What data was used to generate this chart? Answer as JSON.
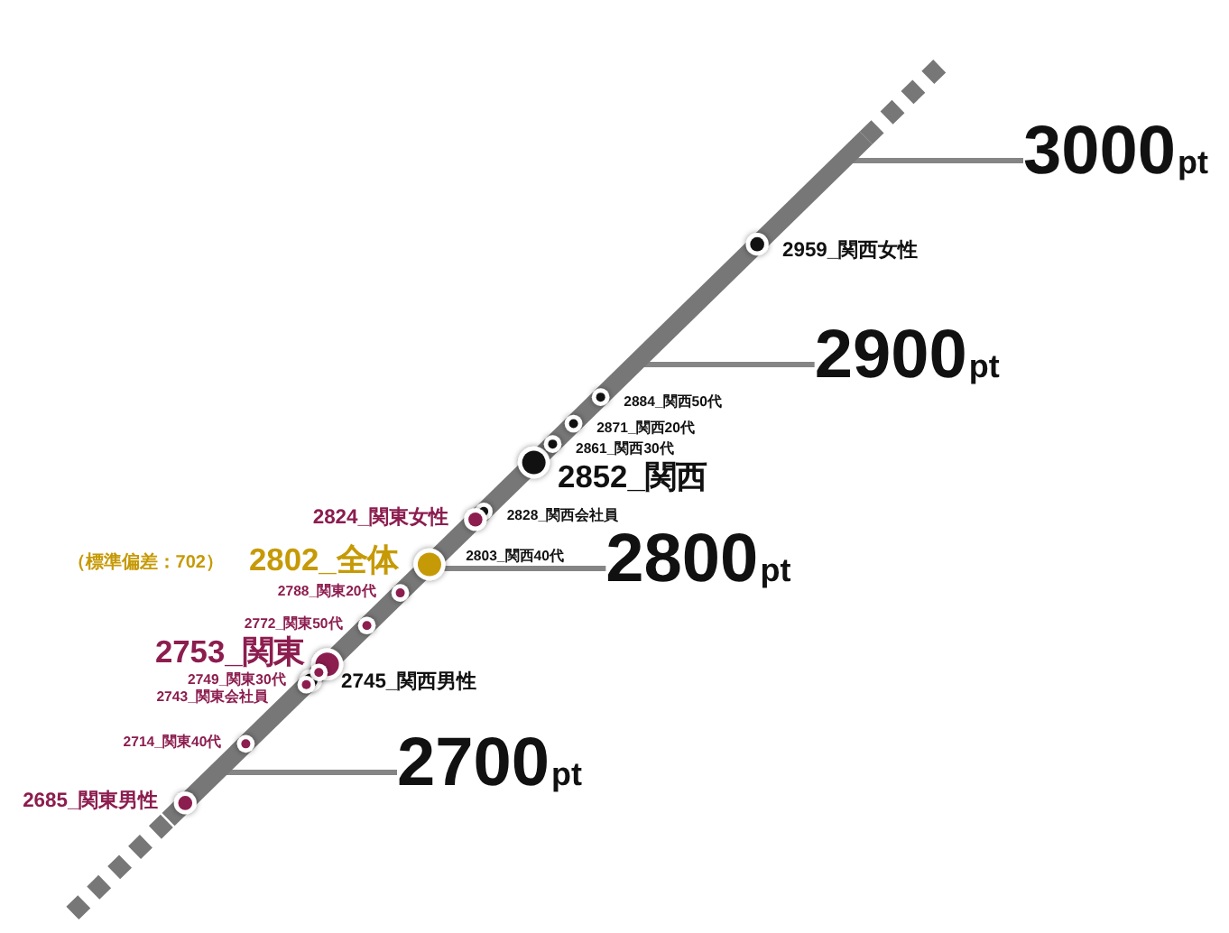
{
  "chart_data": {
    "type": "other",
    "data_labels": true,
    "categories": [
      "_関西女性",
      "_関西50代",
      "_関西20代",
      "_関西30代",
      "_関西",
      "_関西会社員",
      "_関東女性",
      "_関西40代",
      "_全体",
      "_関東20代",
      "_関東50代",
      "_関東",
      "_関東30代",
      "_関西男性",
      "_関東会社員",
      "_関東40代",
      "_関東男性"
    ],
    "series": [
      {
        "color": "#111111",
        "values": [
          null,
          null,
          null,
          null,
          2852,
          null,
          null,
          null,
          null,
          null,
          null,
          null,
          null,
          null,
          null,
          null,
          null
        ]
      },
      {
        "color": "#111111",
        "values": [
          2959,
          null,
          null,
          null,
          null,
          null,
          null,
          null,
          null,
          null,
          null,
          null,
          null,
          2745,
          null,
          null,
          null
        ]
      },
      {
        "color": "#111111",
        "values": [
          null,
          2884,
          2871,
          2861,
          null,
          2828,
          null,
          2803,
          null,
          null,
          null,
          null,
          null,
          null,
          null,
          null,
          null
        ]
      },
      {
        "color": "#c69a06",
        "values": [
          null,
          null,
          null,
          null,
          null,
          null,
          null,
          null,
          2802,
          null,
          null,
          null,
          null,
          null,
          null,
          null,
          null
        ]
      },
      {
        "color": "#8c1d4f",
        "values": [
          null,
          null,
          null,
          null,
          null,
          null,
          null,
          null,
          null,
          null,
          null,
          2753,
          null,
          null,
          null,
          null,
          null
        ]
      },
      {
        "color": "#8c1d4f",
        "values": [
          null,
          null,
          null,
          null,
          null,
          null,
          2824,
          null,
          null,
          null,
          null,
          null,
          null,
          null,
          null,
          null,
          2685
        ]
      },
      {
        "color": "#8c1d4f",
        "values": [
          null,
          null,
          null,
          null,
          null,
          null,
          null,
          null,
          null,
          2788,
          2772,
          null,
          2749,
          null,
          2743,
          2714,
          null
        ]
      }
    ],
    "annotations": [
      "2700pt",
      "2800pt",
      "2900pt",
      "3000pt",
      "（標準偏差：702）"
    ]
  }
}
